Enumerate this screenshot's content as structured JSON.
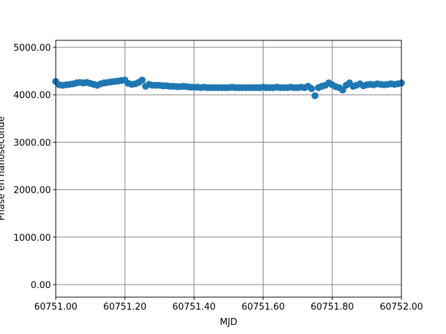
{
  "chart_data": {
    "type": "scatter",
    "xlabel": "MJD",
    "ylabel": "Phase en nanoseconde",
    "color": "#1f77b4",
    "grid": true,
    "xlim": [
      60751.0,
      60752.0
    ],
    "xticks": [
      {
        "value": 60751.0,
        "label": "60751.00"
      },
      {
        "value": 60751.2,
        "label": "60751.20"
      },
      {
        "value": 60751.4,
        "label": "60751.40"
      },
      {
        "value": 60751.6,
        "label": "60751.60"
      },
      {
        "value": 60751.8,
        "label": "60751.80"
      },
      {
        "value": 60752.0,
        "label": "60752.00"
      }
    ],
    "ylim": [
      -264,
      5147
    ],
    "yticks": [
      {
        "value": 0,
        "label": "0.00"
      },
      {
        "value": 1000,
        "label": "1000.00"
      },
      {
        "value": 2000,
        "label": "2000.00"
      },
      {
        "value": 3000,
        "label": "3000.00"
      },
      {
        "value": 4000,
        "label": "4000.00"
      },
      {
        "value": 5000,
        "label": "5000.00"
      }
    ],
    "x": [
      60751.0,
      60751.01,
      60751.02,
      60751.03,
      60751.04,
      60751.05,
      60751.06,
      60751.07,
      60751.08,
      60751.09,
      60751.1,
      60751.11,
      60751.12,
      60751.13,
      60751.14,
      60751.15,
      60751.16,
      60751.17,
      60751.18,
      60751.19,
      60751.2,
      60751.21,
      60751.22,
      60751.23,
      60751.24,
      60751.25,
      60751.26,
      60751.27,
      60751.28,
      60751.29,
      60751.3,
      60751.31,
      60751.32,
      60751.33,
      60751.34,
      60751.35,
      60751.36,
      60751.37,
      60751.38,
      60751.39,
      60751.4,
      60751.41,
      60751.42,
      60751.43,
      60751.44,
      60751.45,
      60751.46,
      60751.47,
      60751.48,
      60751.49,
      60751.5,
      60751.51,
      60751.52,
      60751.53,
      60751.54,
      60751.55,
      60751.56,
      60751.57,
      60751.58,
      60751.59,
      60751.6,
      60751.61,
      60751.62,
      60751.63,
      60751.64,
      60751.65,
      60751.66,
      60751.67,
      60751.68,
      60751.69,
      60751.7,
      60751.71,
      60751.72,
      60751.73,
      60751.74,
      60751.75,
      60751.76,
      60751.77,
      60751.78,
      60751.79,
      60751.8,
      60751.81,
      60751.82,
      60751.83,
      60751.84,
      60751.85,
      60751.86,
      60751.87,
      60751.88,
      60751.89,
      60751.9,
      60751.91,
      60751.92,
      60751.93,
      60751.94,
      60751.95,
      60751.96,
      60751.97,
      60751.98,
      60751.99,
      60752.0
    ],
    "values": [
      4280,
      4210,
      4200,
      4210,
      4220,
      4230,
      4250,
      4260,
      4250,
      4260,
      4240,
      4220,
      4200,
      4230,
      4250,
      4260,
      4270,
      4280,
      4290,
      4300,
      4310,
      4240,
      4220,
      4230,
      4260,
      4310,
      4180,
      4220,
      4200,
      4200,
      4200,
      4190,
      4190,
      4180,
      4180,
      4170,
      4170,
      4180,
      4170,
      4160,
      4160,
      4160,
      4150,
      4160,
      4150,
      4150,
      4150,
      4150,
      4150,
      4150,
      4150,
      4160,
      4150,
      4150,
      4150,
      4150,
      4150,
      4150,
      4150,
      4150,
      4160,
      4150,
      4150,
      4150,
      4160,
      4150,
      4150,
      4150,
      4160,
      4150,
      4150,
      4160,
      4150,
      4180,
      4130,
      3980,
      4150,
      4180,
      4200,
      4250,
      4210,
      4170,
      4150,
      4100,
      4200,
      4250,
      4180,
      4200,
      4230,
      4190,
      4210,
      4220,
      4210,
      4230,
      4220,
      4210,
      4220,
      4230,
      4220,
      4230,
      4250
    ]
  }
}
